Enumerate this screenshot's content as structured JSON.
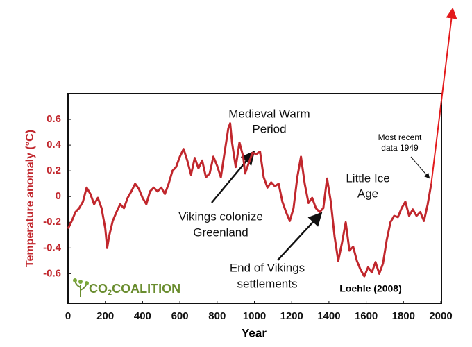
{
  "chart_data": {
    "type": "line",
    "y_label": "Temperature anomaly (°C)",
    "x_label": "Year",
    "x": [
      0,
      20,
      40,
      60,
      80,
      100,
      120,
      140,
      160,
      180,
      200,
      210,
      220,
      240,
      260,
      280,
      300,
      320,
      340,
      360,
      380,
      400,
      420,
      440,
      460,
      480,
      500,
      520,
      540,
      560,
      580,
      600,
      620,
      640,
      660,
      680,
      700,
      720,
      740,
      760,
      780,
      800,
      820,
      840,
      860,
      870,
      880,
      900,
      920,
      940,
      950,
      970,
      990,
      1010,
      1030,
      1050,
      1070,
      1090,
      1110,
      1130,
      1150,
      1170,
      1190,
      1210,
      1230,
      1250,
      1270,
      1290,
      1310,
      1330,
      1350,
      1370,
      1390,
      1410,
      1430,
      1450,
      1470,
      1490,
      1510,
      1530,
      1550,
      1570,
      1590,
      1610,
      1630,
      1650,
      1670,
      1690,
      1710,
      1730,
      1750,
      1770,
      1790,
      1810,
      1830,
      1850,
      1870,
      1890,
      1910,
      1930,
      1949
    ],
    "series": [
      {
        "color": "#c1272d",
        "values": [
          -0.25,
          -0.19,
          -0.12,
          -0.09,
          -0.04,
          0.07,
          0.02,
          -0.06,
          -0.01,
          -0.09,
          -0.25,
          -0.4,
          -0.31,
          -0.19,
          -0.12,
          -0.06,
          -0.09,
          -0.01,
          0.04,
          0.1,
          0.06,
          -0.01,
          -0.06,
          0.04,
          0.07,
          0.04,
          0.07,
          0.02,
          0.1,
          0.2,
          0.23,
          0.31,
          0.37,
          0.28,
          0.17,
          0.3,
          0.22,
          0.28,
          0.15,
          0.18,
          0.31,
          0.24,
          0.15,
          0.34,
          0.53,
          0.57,
          0.42,
          0.23,
          0.42,
          0.31,
          0.18,
          0.26,
          0.34,
          0.33,
          0.35,
          0.15,
          0.07,
          0.11,
          0.08,
          0.1,
          -0.04,
          -0.12,
          -0.19,
          -0.09,
          0.15,
          0.31,
          0.1,
          -0.05,
          -0.01,
          -0.09,
          -0.12,
          -0.09,
          0.14,
          -0.04,
          -0.31,
          -0.5,
          -0.36,
          -0.2,
          -0.42,
          -0.39,
          -0.5,
          -0.57,
          -0.62,
          -0.55,
          -0.59,
          -0.51,
          -0.6,
          -0.52,
          -0.34,
          -0.2,
          -0.15,
          -0.16,
          -0.09,
          -0.04,
          -0.15,
          -0.1,
          -0.15,
          -0.12,
          -0.19,
          -0.06,
          0.1
        ]
      }
    ],
    "trend": {
      "color": "#e31a1c",
      "x": [
        1949,
        2063
      ],
      "y": [
        0.1,
        1.45
      ]
    },
    "xlim": [
      0,
      2000
    ],
    "xticks": [
      0,
      200,
      400,
      600,
      800,
      1000,
      1200,
      1400,
      1600,
      1800,
      2000
    ],
    "ylim": [
      -0.83,
      0.8
    ],
    "yticks": [
      0.6,
      0.4,
      0.2,
      0,
      -0.2,
      -0.4,
      -0.6
    ],
    "annotations": [
      {
        "lines": [
          "Medieval Warm",
          "Period"
        ]
      },
      {
        "lines": [
          "Vikings colonize",
          "Greenland"
        ]
      },
      {
        "lines": [
          "End of Vikings",
          "settlements"
        ]
      },
      {
        "lines": [
          "Little Ice",
          "Age"
        ]
      },
      {
        "lines": [
          "Most recent",
          "data 1949"
        ]
      }
    ],
    "source": "Loehle (2008)",
    "logo": {
      "main": "CO",
      "sub": "2",
      "rest": "COALITION"
    }
  }
}
